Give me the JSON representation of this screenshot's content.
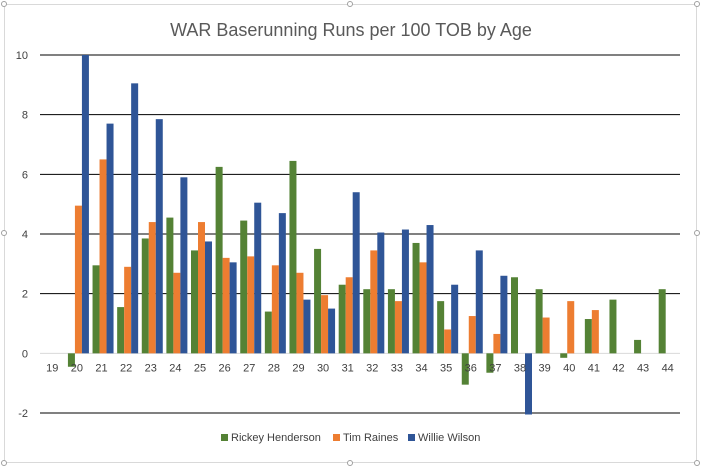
{
  "chart_data": {
    "type": "bar",
    "title": "WAR Baserunning Runs per 100 TOB by Age",
    "xlabel": "",
    "ylabel": "",
    "categories": [
      "19",
      "20",
      "21",
      "22",
      "23",
      "24",
      "25",
      "26",
      "27",
      "28",
      "29",
      "30",
      "31",
      "32",
      "33",
      "34",
      "35",
      "36",
      "37",
      "38",
      "39",
      "40",
      "41",
      "42",
      "43",
      "44"
    ],
    "y_ticks": [
      "-2",
      "0",
      "2",
      "4",
      "6",
      "8",
      "10"
    ],
    "ylim": [
      -2,
      10
    ],
    "grid": true,
    "legend_position": "bottom",
    "series": [
      {
        "name": "Rickey Henderson",
        "color": "#548235",
        "values": [
          null,
          -0.45,
          2.95,
          1.55,
          3.85,
          4.55,
          3.45,
          6.25,
          4.45,
          1.4,
          6.45,
          3.5,
          2.3,
          2.15,
          2.15,
          3.7,
          1.75,
          -1.05,
          -0.65,
          2.55,
          2.15,
          -0.15,
          1.15,
          1.8,
          0.45,
          2.15
        ]
      },
      {
        "name": "Tim Raines",
        "color": "#ED7D31",
        "values": [
          null,
          4.95,
          6.5,
          2.9,
          4.4,
          2.7,
          4.4,
          3.2,
          3.25,
          2.95,
          2.7,
          1.95,
          2.55,
          3.45,
          1.75,
          3.05,
          0.8,
          1.25,
          0.65,
          null,
          1.2,
          1.75,
          1.45,
          null,
          null,
          null
        ]
      },
      {
        "name": "Willie Wilson",
        "color": "#2F5597",
        "values": [
          null,
          10.0,
          7.7,
          9.05,
          7.85,
          5.9,
          3.75,
          3.05,
          5.05,
          4.7,
          1.8,
          1.5,
          5.4,
          4.05,
          4.15,
          4.3,
          2.3,
          3.45,
          2.6,
          -2.05,
          null,
          null,
          null,
          null,
          null,
          null
        ]
      }
    ]
  }
}
